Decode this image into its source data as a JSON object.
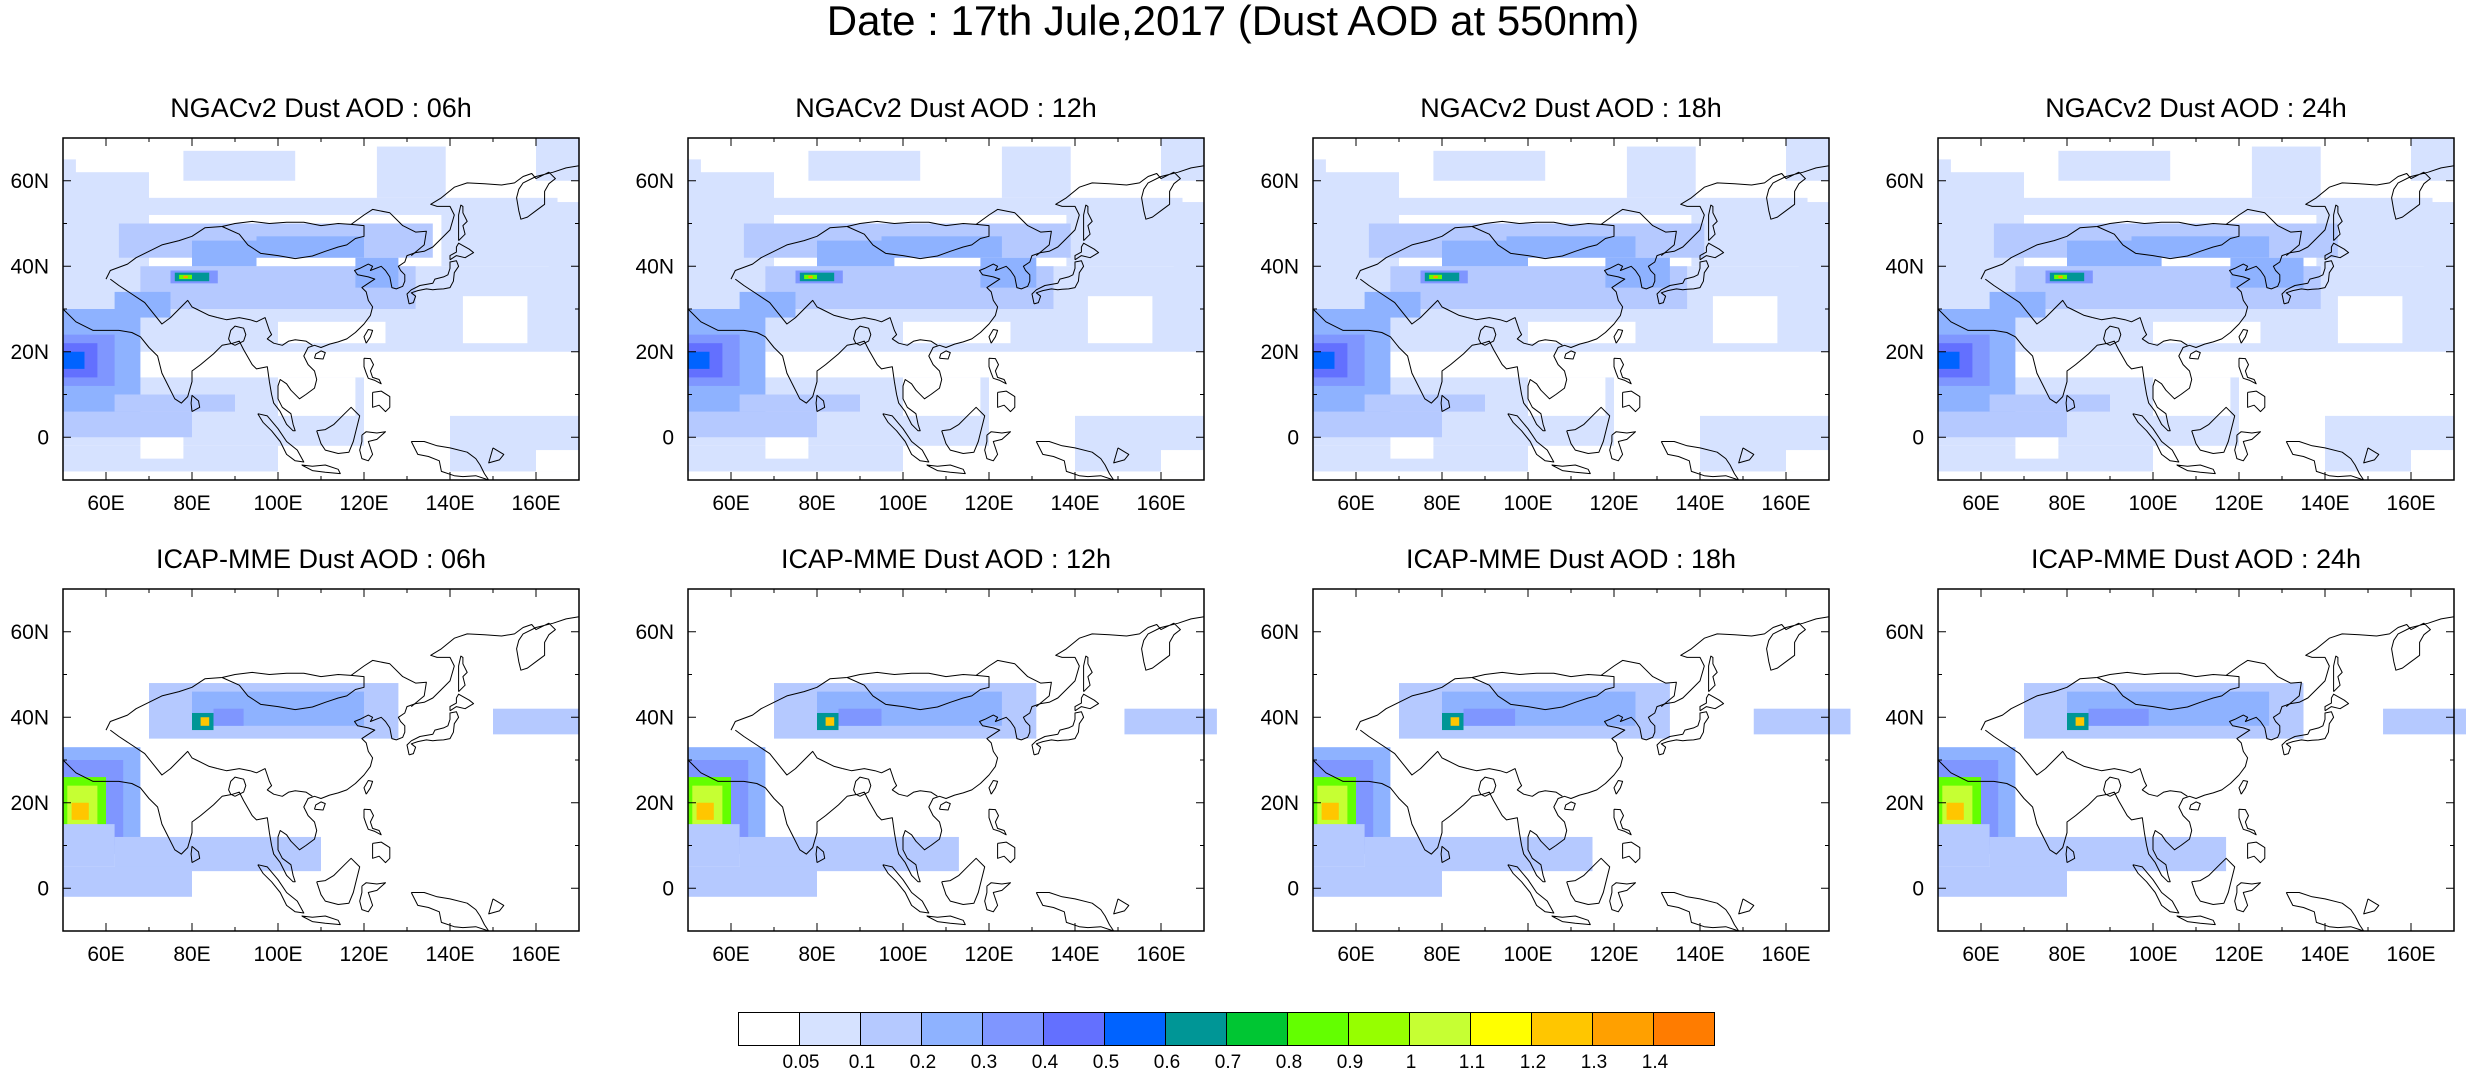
{
  "figure_title": "Date : 17th Jule,2017 (Dust AOD at 550nm)",
  "lon_ticks": [
    "60E",
    "80E",
    "100E",
    "120E",
    "140E",
    "160E"
  ],
  "lat_ticks": [
    "60N",
    "40N",
    "20N",
    "0"
  ],
  "map_extent": {
    "lon": [
      50,
      170
    ],
    "lat": [
      -10,
      70
    ]
  },
  "panels": [
    {
      "title": "NGACv2 Dust AOD : 06h",
      "model": "NGACv2",
      "lead_time": "06h"
    },
    {
      "title": "NGACv2 Dust AOD : 12h",
      "model": "NGACv2",
      "lead_time": "12h"
    },
    {
      "title": "NGACv2 Dust AOD : 18h",
      "model": "NGACv2",
      "lead_time": "18h"
    },
    {
      "title": "NGACv2 Dust AOD : 24h",
      "model": "NGACv2",
      "lead_time": "24h"
    },
    {
      "title": "ICAP-MME Dust AOD : 06h",
      "model": "ICAP-MME",
      "lead_time": "06h"
    },
    {
      "title": "ICAP-MME Dust AOD : 12h",
      "model": "ICAP-MME",
      "lead_time": "12h"
    },
    {
      "title": "ICAP-MME Dust AOD : 18h",
      "model": "ICAP-MME",
      "lead_time": "18h"
    },
    {
      "title": "ICAP-MME Dust AOD : 24h",
      "model": "ICAP-MME",
      "lead_time": "24h"
    }
  ],
  "colorbar": {
    "colors": [
      "#ffffff",
      "#d6e2ff",
      "#b5c9ff",
      "#8eb2ff",
      "#7f96ff",
      "#6370ff",
      "#0063ff",
      "#009696",
      "#00c633",
      "#63ff00",
      "#96ff00",
      "#c6ff33",
      "#ffff00",
      "#ffc600",
      "#ffa000",
      "#ff7c00",
      "#ff1900"
    ],
    "labels": [
      "0.05",
      "0.1",
      "0.2",
      "0.3",
      "0.4",
      "0.5",
      "0.6",
      "0.7",
      "0.8",
      "0.9",
      "1",
      "1.1",
      "1.2",
      "1.3",
      "1.4"
    ]
  }
}
